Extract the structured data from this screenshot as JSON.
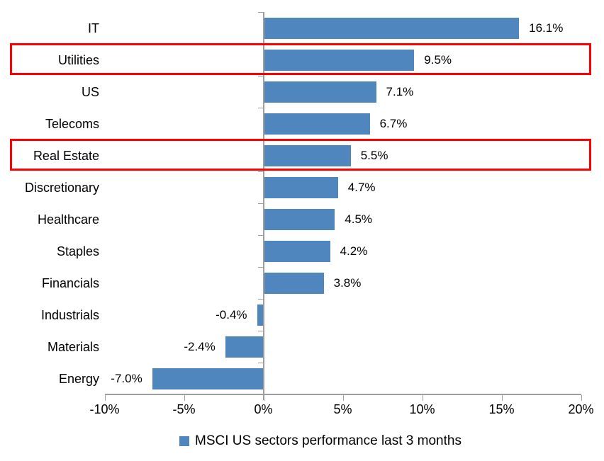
{
  "chart_data": {
    "type": "bar",
    "orientation": "horizontal",
    "title": "",
    "xlabel": "",
    "ylabel": "",
    "categories": [
      "IT",
      "Utilities",
      "US",
      "Telecoms",
      "Real Estate",
      "Discretionary",
      "Healthcare",
      "Staples",
      "Financials",
      "Industrials",
      "Materials",
      "Energy"
    ],
    "values": [
      16.1,
      9.5,
      7.1,
      6.7,
      5.5,
      4.7,
      4.5,
      4.2,
      3.8,
      -0.4,
      -2.4,
      -7.0
    ],
    "value_labels": [
      "16.1%",
      "9.5%",
      "7.1%",
      "6.7%",
      "5.5%",
      "4.7%",
      "4.5%",
      "4.2%",
      "3.8%",
      "-0.4%",
      "-2.4%",
      "-7.0%"
    ],
    "x_tick_labels": [
      "-10%",
      "-5%",
      "0%",
      "5%",
      "10%",
      "15%",
      "20%"
    ],
    "x_tick_values": [
      -10,
      -5,
      0,
      5,
      10,
      15,
      20
    ],
    "xlim": [
      -10,
      20
    ],
    "grid": false,
    "legend_position": "bottom-center",
    "legend": "MSCI US sectors performance last 3 months",
    "highlighted_categories": [
      "Utilities",
      "Real Estate"
    ],
    "highlight_indices": [
      1,
      4
    ],
    "colors": {
      "bar": "#4e86bd",
      "highlight_box": "#fe0000",
      "axis": "#9e9e9e",
      "text": "#000000"
    }
  }
}
